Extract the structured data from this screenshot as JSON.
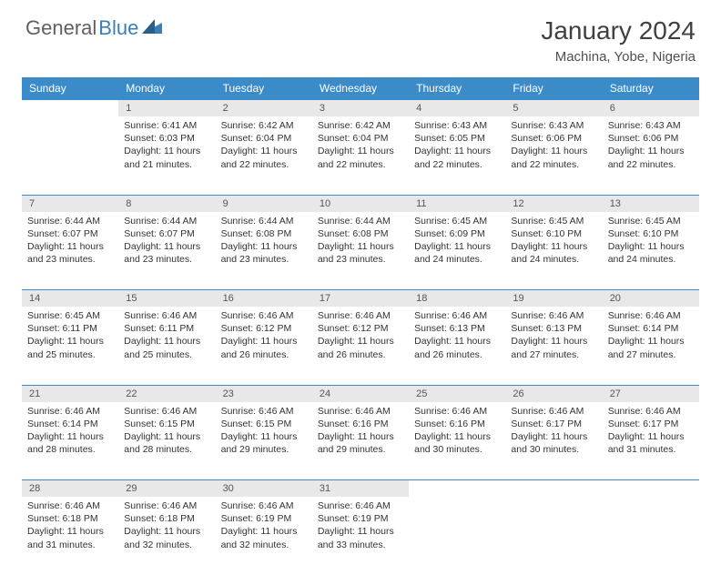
{
  "brand": {
    "name1": "General",
    "name2": "Blue"
  },
  "title": "January 2024",
  "subtitle": "Machina, Yobe, Nigeria",
  "colors": {
    "header_bg": "#3b8bc9",
    "header_fg": "#ffffff",
    "daynum_bg": "#e8e8e8",
    "border": "#3b8bc9",
    "text": "#333333",
    "brand_gray": "#606060",
    "brand_blue": "#3b7fb8"
  },
  "typography": {
    "title_fontsize": 28,
    "subtitle_fontsize": 15,
    "header_fontsize": 12,
    "cell_fontsize": 10.5
  },
  "dayHeaders": [
    "Sunday",
    "Monday",
    "Tuesday",
    "Wednesday",
    "Thursday",
    "Friday",
    "Saturday"
  ],
  "weeks": [
    [
      null,
      {
        "n": "1",
        "sunrise": "6:41 AM",
        "sunset": "6:03 PM",
        "daylight": "11 hours and 21 minutes."
      },
      {
        "n": "2",
        "sunrise": "6:42 AM",
        "sunset": "6:04 PM",
        "daylight": "11 hours and 22 minutes."
      },
      {
        "n": "3",
        "sunrise": "6:42 AM",
        "sunset": "6:04 PM",
        "daylight": "11 hours and 22 minutes."
      },
      {
        "n": "4",
        "sunrise": "6:43 AM",
        "sunset": "6:05 PM",
        "daylight": "11 hours and 22 minutes."
      },
      {
        "n": "5",
        "sunrise": "6:43 AM",
        "sunset": "6:06 PM",
        "daylight": "11 hours and 22 minutes."
      },
      {
        "n": "6",
        "sunrise": "6:43 AM",
        "sunset": "6:06 PM",
        "daylight": "11 hours and 22 minutes."
      }
    ],
    [
      {
        "n": "7",
        "sunrise": "6:44 AM",
        "sunset": "6:07 PM",
        "daylight": "11 hours and 23 minutes."
      },
      {
        "n": "8",
        "sunrise": "6:44 AM",
        "sunset": "6:07 PM",
        "daylight": "11 hours and 23 minutes."
      },
      {
        "n": "9",
        "sunrise": "6:44 AM",
        "sunset": "6:08 PM",
        "daylight": "11 hours and 23 minutes."
      },
      {
        "n": "10",
        "sunrise": "6:44 AM",
        "sunset": "6:08 PM",
        "daylight": "11 hours and 23 minutes."
      },
      {
        "n": "11",
        "sunrise": "6:45 AM",
        "sunset": "6:09 PM",
        "daylight": "11 hours and 24 minutes."
      },
      {
        "n": "12",
        "sunrise": "6:45 AM",
        "sunset": "6:10 PM",
        "daylight": "11 hours and 24 minutes."
      },
      {
        "n": "13",
        "sunrise": "6:45 AM",
        "sunset": "6:10 PM",
        "daylight": "11 hours and 24 minutes."
      }
    ],
    [
      {
        "n": "14",
        "sunrise": "6:45 AM",
        "sunset": "6:11 PM",
        "daylight": "11 hours and 25 minutes."
      },
      {
        "n": "15",
        "sunrise": "6:46 AM",
        "sunset": "6:11 PM",
        "daylight": "11 hours and 25 minutes."
      },
      {
        "n": "16",
        "sunrise": "6:46 AM",
        "sunset": "6:12 PM",
        "daylight": "11 hours and 26 minutes."
      },
      {
        "n": "17",
        "sunrise": "6:46 AM",
        "sunset": "6:12 PM",
        "daylight": "11 hours and 26 minutes."
      },
      {
        "n": "18",
        "sunrise": "6:46 AM",
        "sunset": "6:13 PM",
        "daylight": "11 hours and 26 minutes."
      },
      {
        "n": "19",
        "sunrise": "6:46 AM",
        "sunset": "6:13 PM",
        "daylight": "11 hours and 27 minutes."
      },
      {
        "n": "20",
        "sunrise": "6:46 AM",
        "sunset": "6:14 PM",
        "daylight": "11 hours and 27 minutes."
      }
    ],
    [
      {
        "n": "21",
        "sunrise": "6:46 AM",
        "sunset": "6:14 PM",
        "daylight": "11 hours and 28 minutes."
      },
      {
        "n": "22",
        "sunrise": "6:46 AM",
        "sunset": "6:15 PM",
        "daylight": "11 hours and 28 minutes."
      },
      {
        "n": "23",
        "sunrise": "6:46 AM",
        "sunset": "6:15 PM",
        "daylight": "11 hours and 29 minutes."
      },
      {
        "n": "24",
        "sunrise": "6:46 AM",
        "sunset": "6:16 PM",
        "daylight": "11 hours and 29 minutes."
      },
      {
        "n": "25",
        "sunrise": "6:46 AM",
        "sunset": "6:16 PM",
        "daylight": "11 hours and 30 minutes."
      },
      {
        "n": "26",
        "sunrise": "6:46 AM",
        "sunset": "6:17 PM",
        "daylight": "11 hours and 30 minutes."
      },
      {
        "n": "27",
        "sunrise": "6:46 AM",
        "sunset": "6:17 PM",
        "daylight": "11 hours and 31 minutes."
      }
    ],
    [
      {
        "n": "28",
        "sunrise": "6:46 AM",
        "sunset": "6:18 PM",
        "daylight": "11 hours and 31 minutes."
      },
      {
        "n": "29",
        "sunrise": "6:46 AM",
        "sunset": "6:18 PM",
        "daylight": "11 hours and 32 minutes."
      },
      {
        "n": "30",
        "sunrise": "6:46 AM",
        "sunset": "6:19 PM",
        "daylight": "11 hours and 32 minutes."
      },
      {
        "n": "31",
        "sunrise": "6:46 AM",
        "sunset": "6:19 PM",
        "daylight": "11 hours and 33 minutes."
      },
      null,
      null,
      null
    ]
  ],
  "labels": {
    "sunrise": "Sunrise:",
    "sunset": "Sunset:",
    "daylight": "Daylight:"
  }
}
